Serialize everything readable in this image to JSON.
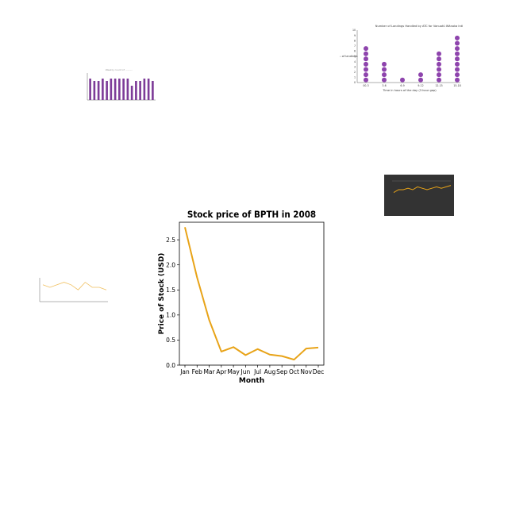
{
  "chart_data": [
    {
      "type": "line",
      "title": "Stock price of BPTH in 2008",
      "xlabel": "Month",
      "ylabel": "Price of Stock (USD)",
      "categories": [
        "Jan",
        "Feb",
        "Mar",
        "Apr",
        "May",
        "Jun",
        "Jul",
        "Aug",
        "Sep",
        "Oct",
        "Nov",
        "Dec"
      ],
      "values": [
        2.75,
        1.75,
        0.9,
        0.27,
        0.36,
        0.2,
        0.32,
        0.21,
        0.18,
        0.11,
        0.33,
        0.35
      ],
      "ylim": [
        0,
        2.85
      ],
      "yticks": [
        "0.0",
        "0.5",
        "1.0",
        "1.5",
        "2.0",
        "2.5"
      ],
      "line_color": "#e8a317",
      "grid": false
    },
    {
      "type": "scatter",
      "title": "Number of Landings Handled by ATC for Vanuatū Wānaka Intl",
      "xlabel": "Time in hours of the day (3 hour gap)",
      "ylabel": "No. of landings",
      "categories": [
        "00-3",
        "3-6",
        "6-9",
        "9-12",
        "12-15",
        "15-18"
      ],
      "values": [
        7,
        4,
        1,
        2,
        6,
        9
      ],
      "yticks": [
        "0",
        "1",
        "2",
        "3",
        "4",
        "5",
        "6",
        "7",
        "8",
        "9",
        "10"
      ],
      "ylim": [
        0,
        10
      ],
      "color": "#8e44ad"
    },
    {
      "type": "bar",
      "values": [
        9,
        8,
        8,
        9,
        8,
        9,
        9,
        9,
        9,
        9,
        6,
        8,
        8,
        9,
        9,
        8
      ],
      "color": "#7d3c98"
    },
    {
      "type": "line",
      "values": [
        3,
        5,
        5,
        6,
        5,
        7,
        6,
        5,
        6,
        7,
        6,
        7,
        8
      ],
      "line_color": "#e8a317",
      "background": "#333333"
    },
    {
      "type": "line",
      "values": [
        6,
        5,
        6,
        7,
        6,
        4,
        7,
        5,
        5,
        4
      ],
      "line_color": "#f0c060"
    }
  ]
}
